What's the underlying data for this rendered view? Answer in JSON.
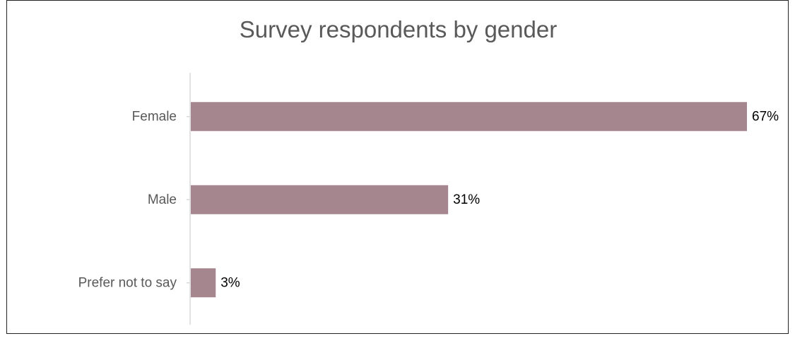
{
  "chart_data": {
    "type": "bar",
    "orientation": "horizontal",
    "title": "Survey respondents by gender",
    "categories": [
      "Female",
      "Male",
      "Prefer not to say"
    ],
    "values": [
      67,
      31,
      3
    ],
    "value_labels": [
      "67%",
      "31%",
      "3%"
    ],
    "unit": "%",
    "xlim": [
      0,
      67
    ],
    "grid": false,
    "legend": "none",
    "bar_color": "#a5868f",
    "axis_color": "#d9d9d9"
  }
}
